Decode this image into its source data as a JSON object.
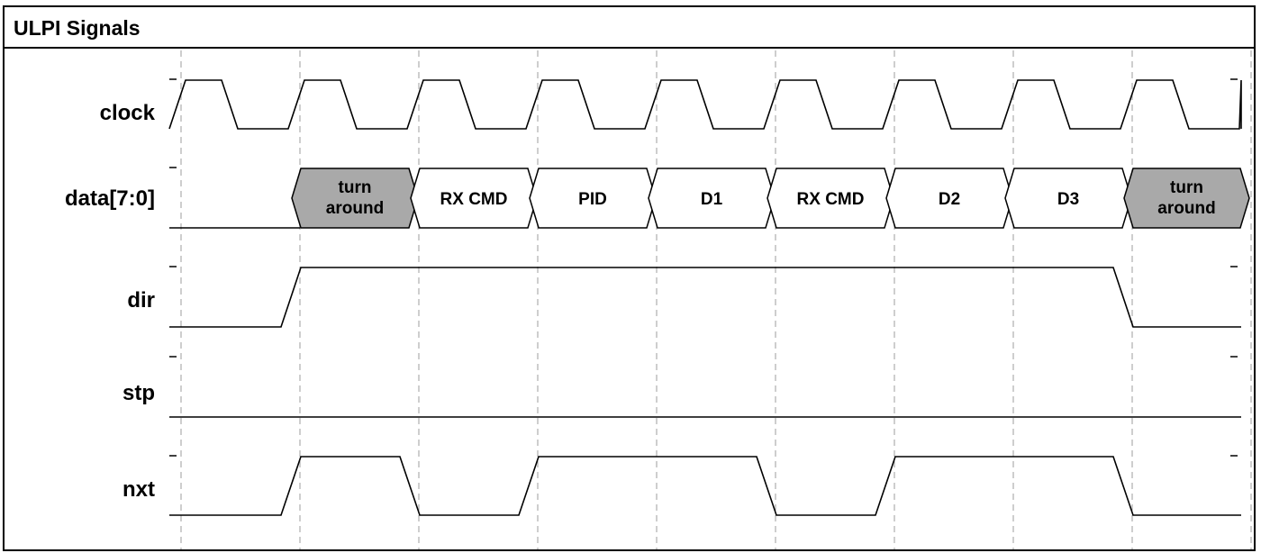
{
  "title": "ULPI Signals",
  "signals": [
    {
      "name": "clock",
      "type": "clock",
      "cycles": 10
    },
    {
      "name": "data[7:0]",
      "type": "bus",
      "segments": [
        {
          "label": [
            "turn",
            "around"
          ],
          "fill": "#a9a9a9"
        },
        {
          "label": [
            "RX CMD"
          ],
          "fill": "#ffffff"
        },
        {
          "label": [
            "PID"
          ],
          "fill": "#ffffff"
        },
        {
          "label": [
            "D1"
          ],
          "fill": "#ffffff"
        },
        {
          "label": [
            "RX CMD"
          ],
          "fill": "#ffffff"
        },
        {
          "label": [
            "D2"
          ],
          "fill": "#ffffff"
        },
        {
          "label": [
            "D3"
          ],
          "fill": "#ffffff"
        },
        {
          "label": [
            "turn",
            "around"
          ],
          "fill": "#a9a9a9"
        }
      ]
    },
    {
      "name": "dir",
      "type": "digital",
      "levels": [
        0,
        1,
        1,
        1,
        1,
        1,
        1,
        1,
        0
      ]
    },
    {
      "name": "stp",
      "type": "digital",
      "levels": [
        0,
        0,
        0,
        0,
        0,
        0,
        0,
        0,
        0
      ]
    },
    {
      "name": "nxt",
      "type": "digital",
      "levels": [
        0,
        1,
        0,
        1,
        1,
        0,
        1,
        1,
        0
      ]
    }
  ],
  "colors": {
    "line": "#000000",
    "grid": "#b3b3b3",
    "turnaround": "#a9a9a9"
  }
}
